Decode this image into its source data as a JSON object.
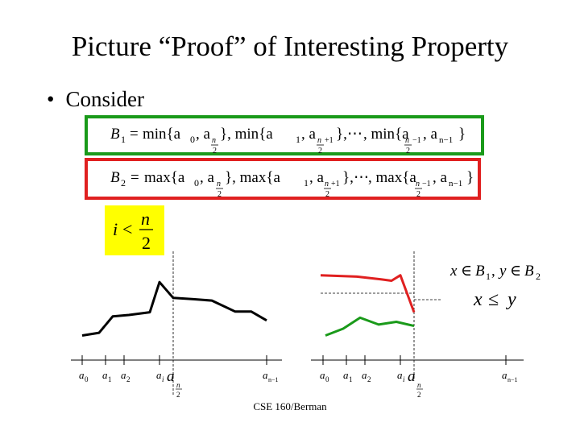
{
  "slide": {
    "title": "Picture “Proof” of Interesting Property",
    "bullet_label": "Consider",
    "footer": "CSE 160/Berman"
  },
  "colors": {
    "green": "#1a9a1a",
    "red": "#e02020",
    "yellow": "#ffff00",
    "black": "#000000"
  },
  "formulas": {
    "b1": {
      "lhs": "B",
      "lhs_sub": "1",
      "eq": "=",
      "terms": [
        "min{a",
        "0",
        ", a",
        "n",
        "2",
        "}, min{a",
        "1",
        ", a",
        "n",
        "2",
        "+1",
        "},",
        "⋯",
        ", min{a",
        "n",
        "2",
        "−1",
        ", a",
        "n−1",
        "}"
      ]
    },
    "b2": {
      "lhs": "B",
      "lhs_sub": "2",
      "eq": "=",
      "terms": [
        "max{a",
        "0",
        ", a",
        "n",
        "2",
        "}, max{a",
        "1",
        ", a",
        "n",
        "2",
        "+1",
        "},",
        "⋯",
        ", max{a",
        "n",
        "2",
        "−1",
        ", a",
        "n−1",
        "}"
      ]
    }
  },
  "condition": {
    "lhs": "i",
    "op": "<",
    "num": "n",
    "den": "2"
  },
  "relations": {
    "membership": {
      "x": "x",
      "in": "∈",
      "b1": "B",
      "b1_sub": "1",
      "comma": ",",
      "y": "y",
      "b2": "B",
      "b2_sub": "2"
    },
    "inequality": {
      "x": "x",
      "op": "≤",
      "y": "y"
    }
  },
  "axis_labels": {
    "a": "a",
    "a0_sub": "0",
    "a1_sub": "1",
    "a2_sub": "2",
    "ai_sub": "i",
    "half_n": "n",
    "half_d": "2",
    "last_sub": "n−1"
  },
  "chart_data": {
    "type": "line",
    "panels": [
      {
        "series": [
          {
            "color": "#000000",
            "values": [
              0.1,
              0.14,
              0.38,
              0.4,
              0.44,
              0.88,
              0.65,
              0.63,
              0.61,
              0.45,
              0.45,
              0.32
            ]
          }
        ]
      },
      {
        "series": [
          {
            "color": "#e02020",
            "values": [
              0.98,
              0.96,
              0.92,
              0.9,
              0.98,
              0.44
            ]
          },
          {
            "color": "#1a9a1a",
            "values": [
              0.1,
              0.2,
              0.36,
              0.26,
              0.3,
              0.24
            ]
          }
        ]
      }
    ]
  }
}
